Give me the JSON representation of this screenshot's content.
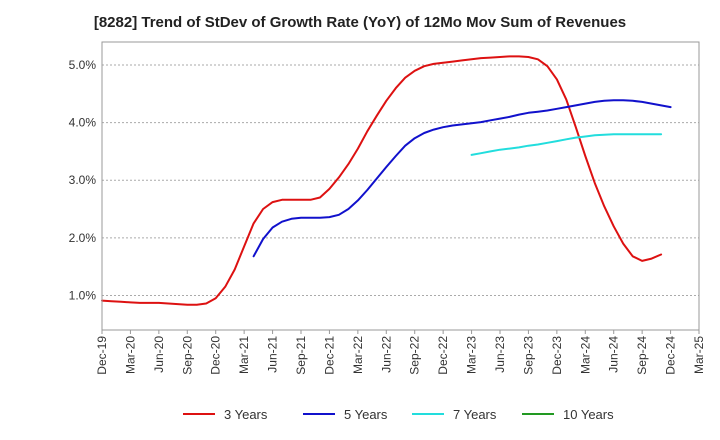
{
  "chart_data": {
    "type": "line",
    "title": "[8282]  Trend of StDev of Growth Rate (YoY) of 12Mo Mov Sum of Revenues",
    "xlabel": "",
    "ylabel": "",
    "ylim": [
      0.4,
      5.4
    ],
    "yticks": [
      1.0,
      2.0,
      3.0,
      4.0,
      5.0
    ],
    "ytick_labels": [
      "1.0%",
      "2.0%",
      "3.0%",
      "4.0%",
      "5.0%"
    ],
    "grid": true,
    "legend_position": "bottom",
    "x_labels": [
      "Dec-19",
      "Mar-20",
      "Jun-20",
      "Sep-20",
      "Dec-20",
      "Mar-21",
      "Jun-21",
      "Sep-21",
      "Dec-21",
      "Mar-22",
      "Jun-22",
      "Sep-22",
      "Dec-22",
      "Mar-23",
      "Jun-23",
      "Sep-23",
      "Dec-23",
      "Mar-24",
      "Jun-24",
      "Sep-24",
      "Dec-24",
      "Mar-25"
    ],
    "series": [
      {
        "name": "3 Years",
        "color": "#dd1111",
        "start_index": 0,
        "values": [
          0.91,
          0.9,
          0.89,
          0.88,
          0.87,
          0.87,
          0.87,
          0.86,
          0.85,
          0.84,
          0.84,
          0.86,
          0.95,
          1.15,
          1.45,
          1.85,
          2.25,
          2.5,
          2.62,
          2.66,
          2.66,
          2.66,
          2.66,
          2.7,
          2.85,
          3.05,
          3.28,
          3.55,
          3.85,
          4.12,
          4.38,
          4.6,
          4.78,
          4.9,
          4.98,
          5.02,
          5.04,
          5.06,
          5.08,
          5.1,
          5.12,
          5.13,
          5.14,
          5.15,
          5.15,
          5.14,
          5.1,
          4.98,
          4.75,
          4.4,
          3.92,
          3.42,
          2.95,
          2.55,
          2.2,
          1.9,
          1.68,
          1.6,
          1.64,
          1.71
        ]
      },
      {
        "name": "5 Years",
        "color": "#1111cc",
        "start_index": 16,
        "values": [
          1.68,
          1.98,
          2.18,
          2.28,
          2.33,
          2.35,
          2.35,
          2.35,
          2.36,
          2.4,
          2.5,
          2.65,
          2.83,
          3.03,
          3.23,
          3.42,
          3.6,
          3.73,
          3.82,
          3.88,
          3.92,
          3.95,
          3.97,
          3.99,
          4.01,
          4.04,
          4.07,
          4.1,
          4.14,
          4.17,
          4.19,
          4.21,
          4.24,
          4.27,
          4.3,
          4.33,
          4.36,
          4.38,
          4.39,
          4.39,
          4.38,
          4.36,
          4.33,
          4.3,
          4.27
        ]
      },
      {
        "name": "7 Years",
        "color": "#22dddd",
        "start_index": 39,
        "values": [
          3.44,
          3.47,
          3.5,
          3.53,
          3.55,
          3.57,
          3.6,
          3.62,
          3.65,
          3.68,
          3.71,
          3.74,
          3.76,
          3.78,
          3.79,
          3.8,
          3.8,
          3.8,
          3.8,
          3.8,
          3.8
        ]
      },
      {
        "name": "10 Years",
        "color": "#229922",
        "start_index": 0,
        "values": []
      }
    ]
  }
}
